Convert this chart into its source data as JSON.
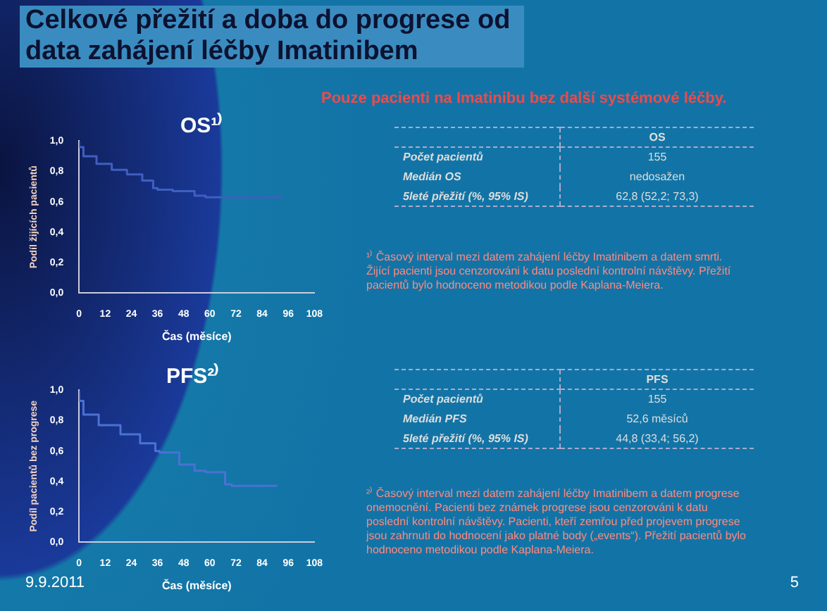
{
  "chart_data": [
    {
      "type": "other",
      "title": "Celkové přežití a doba do progrese od data zahájení léčby Imatinibem",
      "subtitle": "Pouze pacienti na Imatinibu bez další systémové léčby.",
      "annotations": [
        "9.9.2011",
        "5"
      ]
    },
    {
      "type": "step",
      "title": "OS¹⁾",
      "xlabel": "Čas (měsíce)",
      "ylabel": "Podíl žijících pacientů",
      "series": [
        {
          "color": "#3f5fc0",
          "x": [
            0,
            2,
            8,
            15,
            22,
            29,
            34,
            36,
            43,
            53,
            58,
            71,
            94
          ],
          "values": [
            1.0,
            0.96,
            0.9,
            0.85,
            0.81,
            0.78,
            0.74,
            0.69,
            0.68,
            0.67,
            0.64,
            0.63,
            0.63
          ]
        }
      ],
      "xlim": [
        0,
        108
      ],
      "xticks": [
        0,
        12,
        24,
        36,
        48,
        60,
        72,
        84,
        96,
        108
      ],
      "ylim": [
        0,
        1
      ],
      "yticks": [
        {
          "value": 0,
          "label": "0,0"
        },
        {
          "value": 0.2,
          "label": "0,2"
        },
        {
          "value": 0.4,
          "label": "0,4"
        },
        {
          "value": 0.6,
          "label": "0,6"
        },
        {
          "value": 0.8,
          "label": "0,8"
        },
        {
          "value": 1,
          "label": "1,0"
        }
      ],
      "grid": false,
      "legend": false,
      "annotations": [
        "OS",
        "Počet pacientů",
        "155",
        "Medián OS",
        "nedosažen",
        "5leté přežití (%, 95% IS)",
        "62,8 (52,2; 73,3)",
        "¹⁾ Časový interval mezi datem zahájení léčby Imatinibem a datem smrti. Žijící pacienti jsou cenzorováni k datu poslední kontrolní návštěvy. Přežití pacientů bylo hodnoceno metodikou podle Kaplana-Meiera."
      ]
    },
    {
      "type": "step",
      "title": "PFS²⁾",
      "xlabel": "Čas (měsíce)",
      "ylabel": "Podíl pacientů bez progrese",
      "series": [
        {
          "color": "#4a72d4",
          "x": [
            0,
            2,
            9,
            19,
            28,
            35,
            37,
            46,
            53,
            58,
            67,
            70,
            79,
            91
          ],
          "values": [
            1.0,
            0.93,
            0.84,
            0.77,
            0.71,
            0.65,
            0.6,
            0.59,
            0.51,
            0.47,
            0.46,
            0.38,
            0.37,
            0.37
          ]
        }
      ],
      "xlim": [
        0,
        108
      ],
      "xticks": [
        0,
        12,
        24,
        36,
        48,
        60,
        72,
        84,
        96,
        108
      ],
      "ylim": [
        0,
        1
      ],
      "yticks": [
        {
          "value": 0,
          "label": "0,0"
        },
        {
          "value": 0.2,
          "label": "0,2"
        },
        {
          "value": 0.4,
          "label": "0,4"
        },
        {
          "value": 0.6,
          "label": "0,6"
        },
        {
          "value": 0.8,
          "label": "0,8"
        },
        {
          "value": 1,
          "label": "1,0"
        }
      ],
      "grid": false,
      "legend": false,
      "annotations": [
        "PFS",
        "Počet pacientů",
        "155",
        "Medián PFS",
        "52,6 měsíců",
        "5leté přežití (%, 95% IS)",
        "44,8 (33,4; 56,2)",
        "²⁾ Časový interval mezi datem zahájení léčby Imatinibem a datem progrese onemocnění. Pacienti bez známek progrese jsou cenzorováni k datu poslední kontrolní návštěvy. Pacienti, kteří zemřou před projevem progrese jsou zahrnuti do hodnocení jako platné body („events“). Přežití pacientů bylo hodnoceno metodikou podle Kaplana-Meiera."
      ]
    }
  ]
}
